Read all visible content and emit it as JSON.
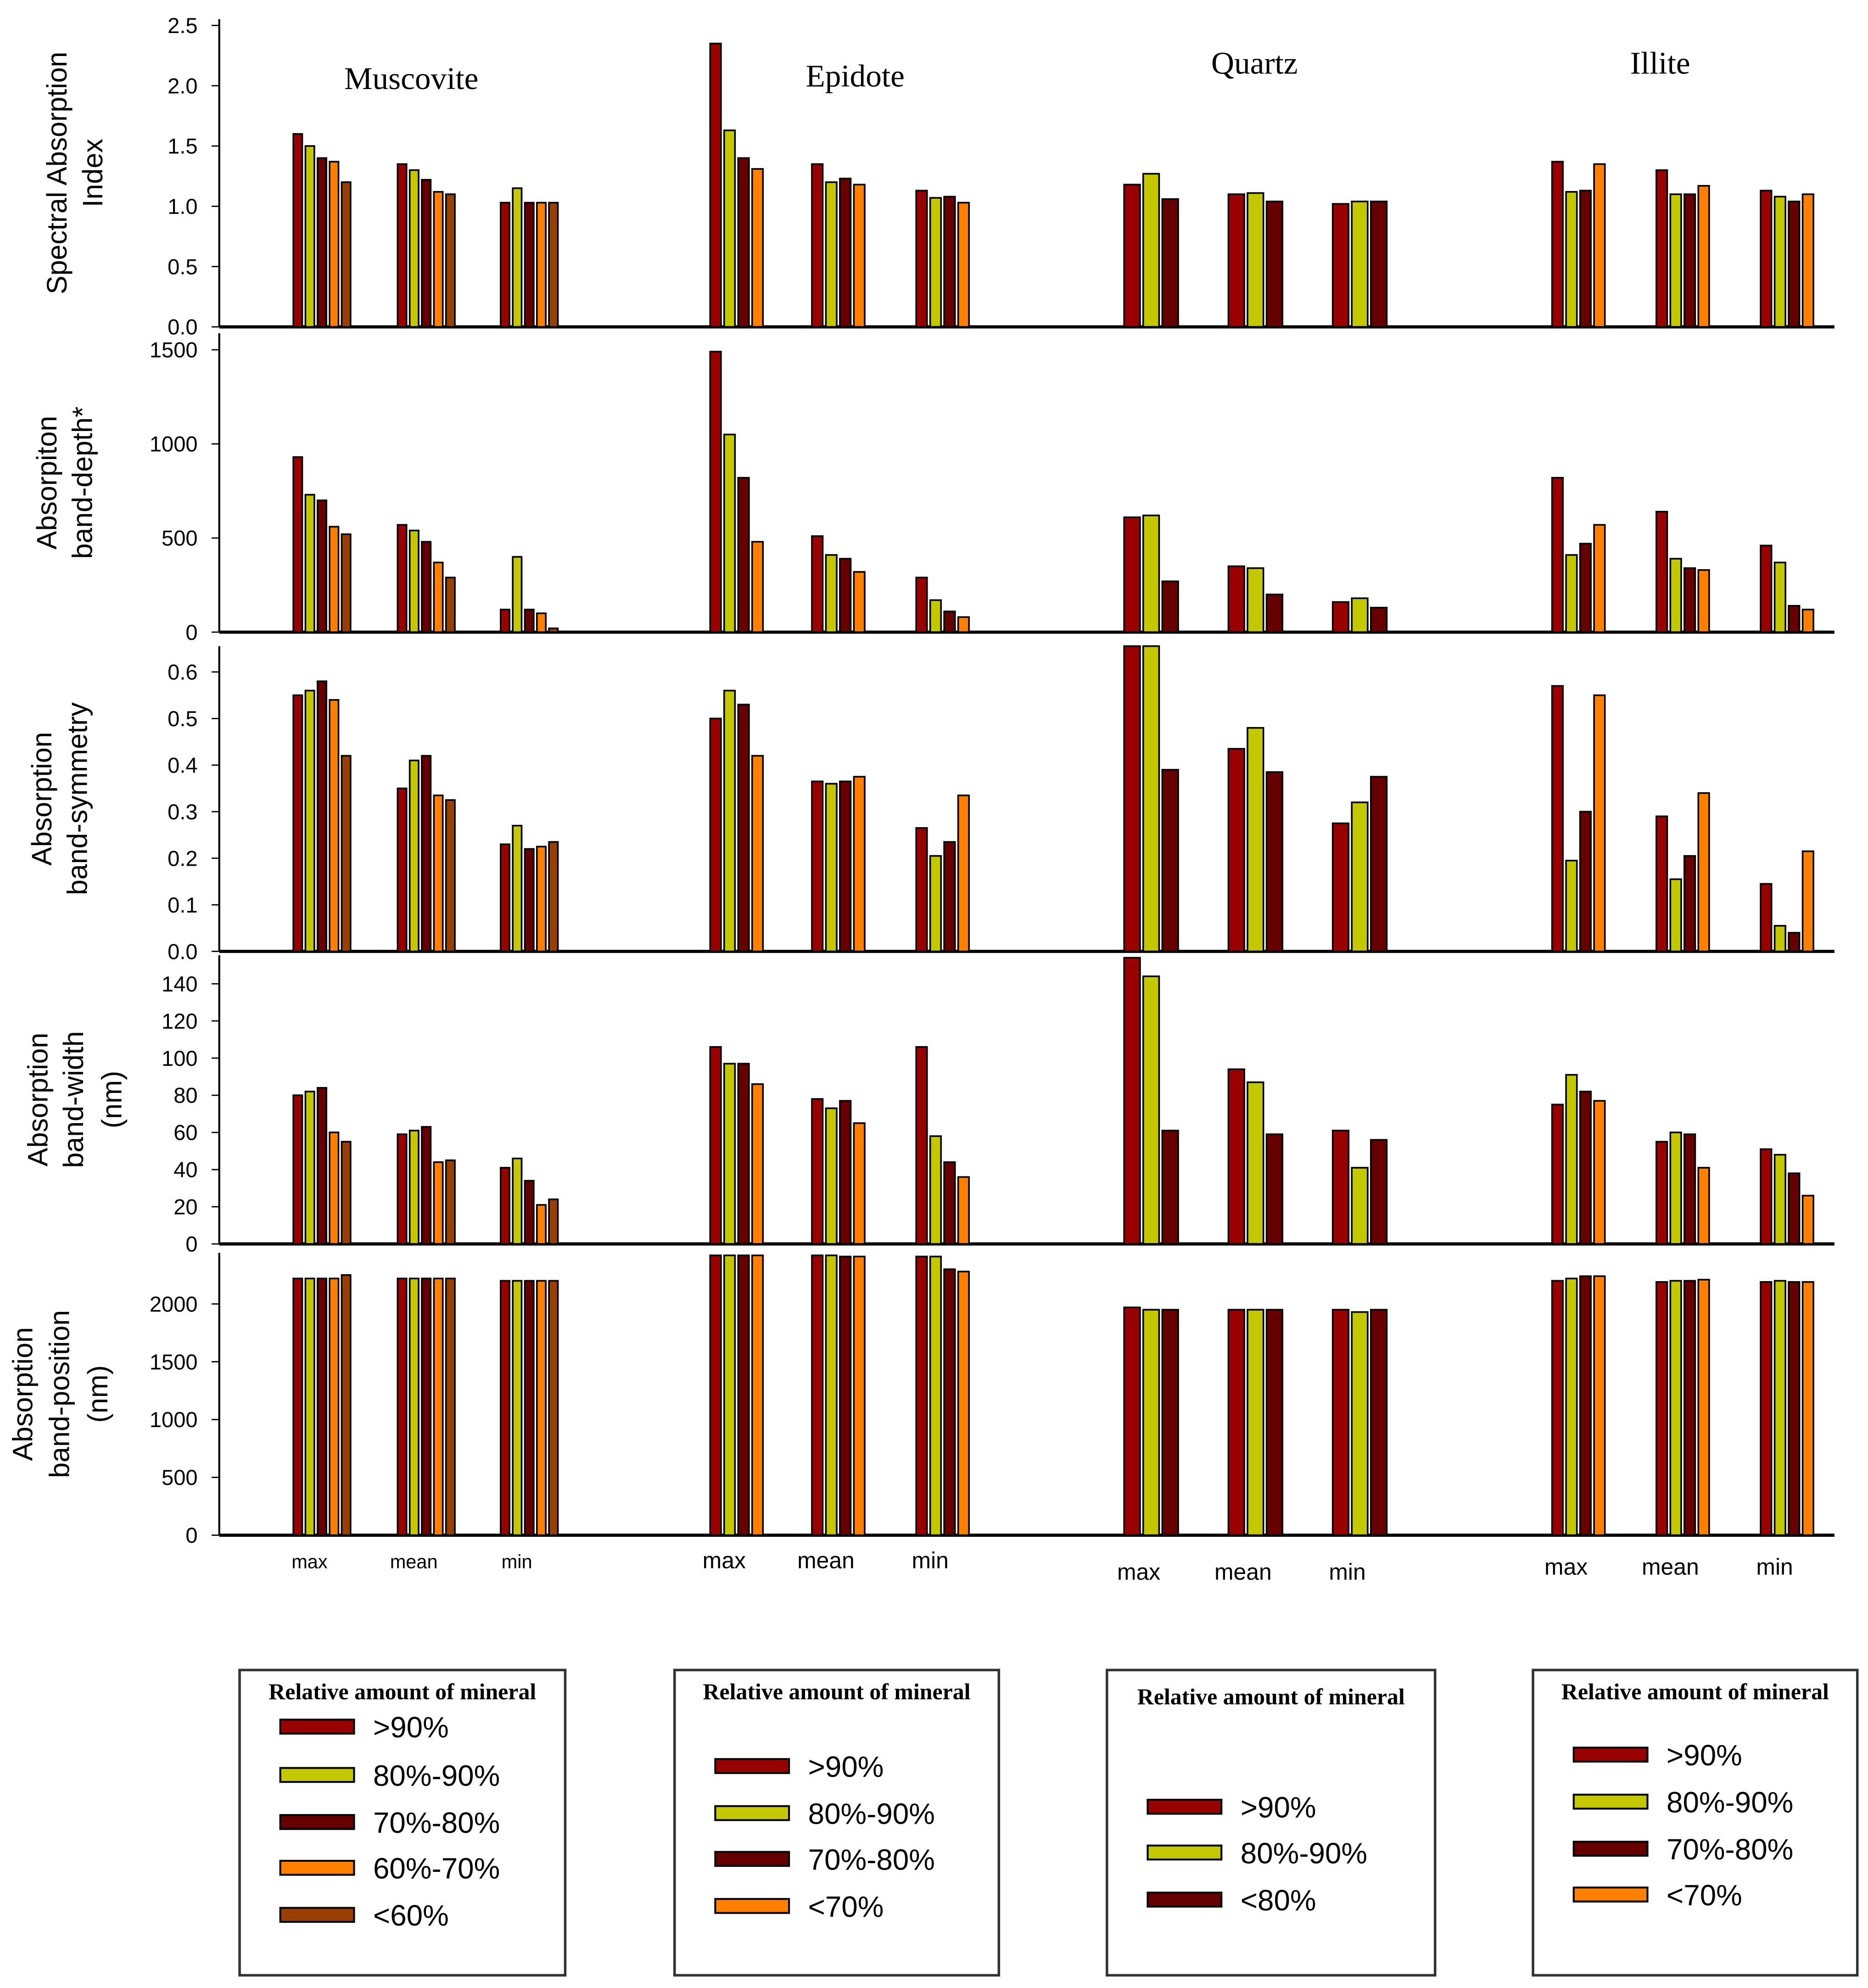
{
  "colors": {
    ">90%": "#990000",
    "80%-90%": "#c4c800",
    "70%-80%": "#660000",
    "60%-70%": "#ff8000",
    "<60%": "#994000",
    "<70%": "#ff8000",
    "<80%": "#660000"
  },
  "stats": [
    "max",
    "mean",
    "min"
  ],
  "minerals": [
    {
      "name": "Muscovite",
      "series": [
        ">90%",
        "80%-90%",
        "70%-80%",
        "60%-70%",
        "<60%"
      ]
    },
    {
      "name": "Epidote",
      "series": [
        ">90%",
        "80%-90%",
        "70%-80%",
        "<70%"
      ]
    },
    {
      "name": "Quartz",
      "series": [
        ">90%",
        "80%-90%",
        "<80%"
      ]
    },
    {
      "name": "Illite",
      "series": [
        ">90%",
        "80%-90%",
        "70%-80%",
        "<70%"
      ]
    }
  ],
  "legend_title": "Relative amount of mineral",
  "chart_data": [
    {
      "type": "bar",
      "ylabel": [
        "Spectral Absorption",
        "Index"
      ],
      "ylim": [
        0,
        2.5
      ],
      "ticks": [
        "0.0",
        "0.5",
        "1.0",
        "1.5",
        "2.0",
        "2.5"
      ],
      "tickvals": [
        0,
        0.5,
        1,
        1.5,
        2,
        2.5
      ],
      "values": [
        [
          [
            1.6,
            1.5,
            1.4,
            1.37,
            1.2
          ],
          [
            1.35,
            1.3,
            1.22,
            1.12,
            1.1
          ],
          [
            1.03,
            1.15,
            1.03,
            1.03,
            1.03
          ]
        ],
        [
          [
            2.35,
            1.63,
            1.4,
            1.31
          ],
          [
            1.35,
            1.2,
            1.23,
            1.18
          ],
          [
            1.13,
            1.07,
            1.08,
            1.03
          ]
        ],
        [
          [
            1.18,
            1.27,
            1.06
          ],
          [
            1.1,
            1.11,
            1.04
          ],
          [
            1.02,
            1.04,
            1.04
          ]
        ],
        [
          [
            1.37,
            1.12,
            1.13,
            1.35
          ],
          [
            1.3,
            1.1,
            1.1,
            1.17
          ],
          [
            1.13,
            1.08,
            1.04,
            1.1
          ]
        ]
      ]
    },
    {
      "type": "bar",
      "ylabel": [
        "Absorpiton",
        "band-depth*"
      ],
      "ylim": [
        0,
        1500
      ],
      "ticks": [
        "0",
        "500",
        "1000",
        "1500"
      ],
      "tickvals": [
        0,
        500,
        1000,
        1500
      ],
      "values": [
        [
          [
            930,
            730,
            700,
            560,
            520
          ],
          [
            570,
            540,
            480,
            370,
            290
          ],
          [
            120,
            400,
            120,
            100,
            20
          ]
        ],
        [
          [
            1490,
            1050,
            820,
            480
          ],
          [
            510,
            410,
            390,
            320
          ],
          [
            290,
            170,
            110,
            80
          ]
        ],
        [
          [
            610,
            620,
            270
          ],
          [
            350,
            340,
            200
          ],
          [
            160,
            180,
            130
          ]
        ],
        [
          [
            820,
            410,
            470,
            570
          ],
          [
            640,
            390,
            340,
            330
          ],
          [
            460,
            370,
            140,
            120
          ]
        ]
      ]
    },
    {
      "type": "bar",
      "ylabel": [
        "Absorption",
        "band-symmetry"
      ],
      "ylim": [
        0,
        0.65
      ],
      "ticks": [
        "0.0",
        "0.1",
        "0.2",
        "0.3",
        "0.4",
        "0.5",
        "0.6"
      ],
      "tickvals": [
        0,
        0.1,
        0.2,
        0.3,
        0.4,
        0.5,
        0.6
      ],
      "values": [
        [
          [
            0.55,
            0.56,
            0.58,
            0.54,
            0.42
          ],
          [
            0.35,
            0.41,
            0.42,
            0.335,
            0.325
          ],
          [
            0.23,
            0.27,
            0.22,
            0.225,
            0.235
          ]
        ],
        [
          [
            0.5,
            0.56,
            0.53,
            0.42
          ],
          [
            0.365,
            0.36,
            0.365,
            0.375
          ],
          [
            0.265,
            0.205,
            0.235,
            0.335
          ]
        ],
        [
          [
            0.68,
            0.68,
            0.39
          ],
          [
            0.435,
            0.48,
            0.385
          ],
          [
            0.275,
            0.32,
            0.375
          ]
        ],
        [
          [
            0.57,
            0.195,
            0.3,
            0.55
          ],
          [
            0.29,
            0.155,
            0.205,
            0.34
          ],
          [
            0.145,
            0.055,
            0.04,
            0.215
          ]
        ]
      ]
    },
    {
      "type": "bar",
      "ylabel": [
        "Absorption",
        "band-width",
        "(nm)"
      ],
      "ylim": [
        0,
        154
      ],
      "ticks": [
        "0",
        "20",
        "40",
        "60",
        "80",
        "100",
        "120",
        "140"
      ],
      "tickvals": [
        0,
        20,
        40,
        60,
        80,
        100,
        120,
        140
      ],
      "values": [
        [
          [
            80,
            82,
            84,
            60,
            55
          ],
          [
            59,
            61,
            63,
            44,
            45
          ],
          [
            41,
            46,
            34,
            21,
            24
          ]
        ],
        [
          [
            106,
            97,
            97,
            86
          ],
          [
            78,
            73,
            77,
            65
          ],
          [
            106,
            58,
            44,
            36
          ]
        ],
        [
          [
            154,
            144,
            61
          ],
          [
            94,
            87,
            59
          ],
          [
            61,
            41,
            56
          ]
        ],
        [
          [
            75,
            91,
            82,
            77
          ],
          [
            55,
            60,
            59,
            41
          ],
          [
            51,
            48,
            38,
            26
          ]
        ]
      ]
    },
    {
      "type": "bar",
      "ylabel": [
        "Absorption",
        "band-position",
        "(nm)"
      ],
      "ylim": [
        0,
        2420
      ],
      "ticks": [
        "0",
        "500",
        "1000",
        "1500",
        "2000"
      ],
      "tickvals": [
        0,
        500,
        1000,
        1500,
        2000
      ],
      "values": [
        [
          [
            2220,
            2220,
            2220,
            2220,
            2250
          ],
          [
            2220,
            2220,
            2220,
            2220,
            2220
          ],
          [
            2200,
            2200,
            2200,
            2200,
            2200
          ]
        ],
        [
          [
            2420,
            2420,
            2420,
            2420
          ],
          [
            2420,
            2420,
            2410,
            2410
          ],
          [
            2410,
            2410,
            2300,
            2280
          ]
        ],
        [
          [
            1970,
            1950,
            1950
          ],
          [
            1950,
            1950,
            1950
          ],
          [
            1950,
            1930,
            1950
          ]
        ],
        [
          [
            2200,
            2220,
            2240,
            2240
          ],
          [
            2190,
            2200,
            2200,
            2210
          ],
          [
            2190,
            2200,
            2190,
            2190
          ]
        ]
      ]
    }
  ]
}
